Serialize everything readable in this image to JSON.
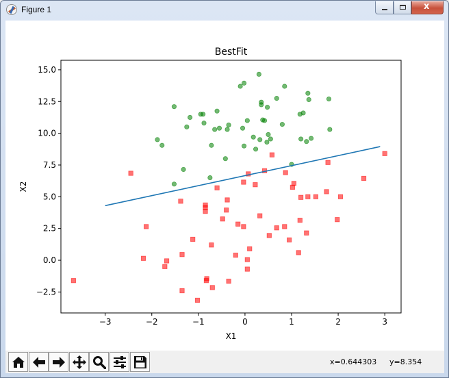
{
  "window": {
    "title": "Figure 1",
    "close_glyph": "x",
    "icons": [
      "matplotlib-icon",
      "minimize-icon",
      "maximize-icon",
      "close-icon"
    ]
  },
  "toolbar": {
    "buttons": [
      {
        "name": "home-button",
        "icon": "home-icon"
      },
      {
        "name": "back-button",
        "icon": "arrow-left-icon"
      },
      {
        "name": "forward-button",
        "icon": "arrow-right-icon"
      },
      {
        "name": "pan-button",
        "icon": "move-icon"
      },
      {
        "name": "zoom-button",
        "icon": "magnifier-icon"
      },
      {
        "name": "subplots-button",
        "icon": "sliders-icon"
      },
      {
        "name": "save-button",
        "icon": "floppy-disk-icon"
      }
    ],
    "x_readout": "x=0.644303",
    "y_readout": "y=8.354"
  },
  "chart_data": {
    "type": "scatter",
    "title": "BestFit",
    "xlabel": "X1",
    "ylabel": "X2",
    "xlim": [
      -3.95,
      3.35
    ],
    "ylim": [
      -4.15,
      15.75
    ],
    "xticks": [
      -3,
      -2,
      -1,
      0,
      1,
      2,
      3
    ],
    "yticks": [
      -2.5,
      0.0,
      2.5,
      5.0,
      7.5,
      10.0,
      12.5,
      15.0
    ],
    "xtick_labels": [
      "−3",
      "−2",
      "−1",
      "0",
      "1",
      "2",
      "3"
    ],
    "ytick_labels": [
      "−2.5",
      "0.0",
      "2.5",
      "5.0",
      "7.5",
      "10.0",
      "12.5",
      "15.0"
    ],
    "grid": false,
    "legend": false,
    "series": [
      {
        "marker": "square",
        "color": "#ff0000",
        "points": [
          [
            -3.68,
            -1.6
          ],
          [
            -2.45,
            6.85
          ],
          [
            -2.18,
            0.15
          ],
          [
            -2.12,
            2.65
          ],
          [
            -1.72,
            -0.5
          ],
          [
            -1.68,
            -0.05
          ],
          [
            -1.38,
            4.65
          ],
          [
            -1.35,
            0.45
          ],
          [
            -1.35,
            -2.4
          ],
          [
            -1.12,
            1.65
          ],
          [
            -1.02,
            -3.15
          ],
          [
            -0.85,
            4.35
          ],
          [
            -0.85,
            4.15
          ],
          [
            -0.85,
            3.85
          ],
          [
            -0.83,
            -1.6
          ],
          [
            -0.82,
            -1.45
          ],
          [
            -0.72,
            1.2
          ],
          [
            -0.7,
            -2.15
          ],
          [
            -0.6,
            5.7
          ],
          [
            -0.48,
            3.25
          ],
          [
            -0.4,
            3.95
          ],
          [
            -0.38,
            4.75
          ],
          [
            -0.35,
            -1.65
          ],
          [
            -0.2,
            0.4
          ],
          [
            -0.15,
            2.85
          ],
          [
            -0.03,
            6.15
          ],
          [
            -0.03,
            2.65
          ],
          [
            0.05,
            0.05
          ],
          [
            0.05,
            -0.7
          ],
          [
            0.07,
            6.8
          ],
          [
            0.1,
            0.9
          ],
          [
            0.22,
            5.95
          ],
          [
            0.32,
            3.5
          ],
          [
            0.42,
            7.05
          ],
          [
            0.52,
            1.95
          ],
          [
            0.58,
            8.3
          ],
          [
            0.68,
            2.55
          ],
          [
            0.85,
            2.65
          ],
          [
            0.87,
            6.9
          ],
          [
            0.95,
            1.6
          ],
          [
            1.02,
            5.75
          ],
          [
            1.05,
            6.05
          ],
          [
            1.15,
            0.6
          ],
          [
            1.18,
            3.15
          ],
          [
            1.2,
            4.95
          ],
          [
            1.32,
            2.15
          ],
          [
            1.35,
            5.0
          ],
          [
            1.52,
            5.0
          ],
          [
            1.75,
            5.4
          ],
          [
            1.78,
            7.7
          ],
          [
            1.98,
            3.2
          ],
          [
            2.05,
            5.0
          ],
          [
            2.55,
            6.45
          ],
          [
            3.0,
            8.4
          ]
        ]
      },
      {
        "marker": "circle",
        "color": "#008000",
        "points": [
          [
            -1.88,
            9.5
          ],
          [
            -1.78,
            9.05
          ],
          [
            -1.52,
            12.1
          ],
          [
            -1.52,
            6.0
          ],
          [
            -1.32,
            7.15
          ],
          [
            -1.25,
            10.5
          ],
          [
            -1.18,
            11.25
          ],
          [
            -0.95,
            11.5
          ],
          [
            -0.9,
            11.5
          ],
          [
            -0.88,
            10.8
          ],
          [
            -0.75,
            6.5
          ],
          [
            -0.72,
            9.05
          ],
          [
            -0.65,
            10.3
          ],
          [
            -0.6,
            11.75
          ],
          [
            -0.55,
            10.4
          ],
          [
            -0.42,
            8.0
          ],
          [
            -0.38,
            10.3
          ],
          [
            -0.35,
            10.65
          ],
          [
            -0.1,
            13.7
          ],
          [
            -0.05,
            10.4
          ],
          [
            -0.02,
            13.95
          ],
          [
            -0.02,
            9.0
          ],
          [
            0.05,
            11.0
          ],
          [
            0.18,
            9.7
          ],
          [
            0.23,
            8.75
          ],
          [
            0.3,
            14.65
          ],
          [
            0.32,
            9.5
          ],
          [
            0.35,
            12.45
          ],
          [
            0.35,
            12.25
          ],
          [
            0.38,
            11.05
          ],
          [
            0.42,
            11.0
          ],
          [
            0.47,
            9.3
          ],
          [
            0.48,
            12.05
          ],
          [
            0.5,
            9.9
          ],
          [
            0.55,
            9.55
          ],
          [
            0.68,
            12.75
          ],
          [
            0.8,
            10.7
          ],
          [
            0.85,
            13.7
          ],
          [
            1.0,
            7.55
          ],
          [
            1.18,
            11.5
          ],
          [
            1.2,
            9.55
          ],
          [
            1.25,
            11.6
          ],
          [
            1.32,
            9.35
          ],
          [
            1.35,
            13.15
          ],
          [
            1.37,
            12.65
          ],
          [
            1.42,
            9.6
          ],
          [
            1.8,
            12.7
          ],
          [
            1.82,
            10.3
          ]
        ]
      }
    ],
    "fit_line": {
      "color": "#1f77b4",
      "x": [
        -3.0,
        2.9
      ],
      "y": [
        4.3,
        8.95
      ]
    }
  }
}
